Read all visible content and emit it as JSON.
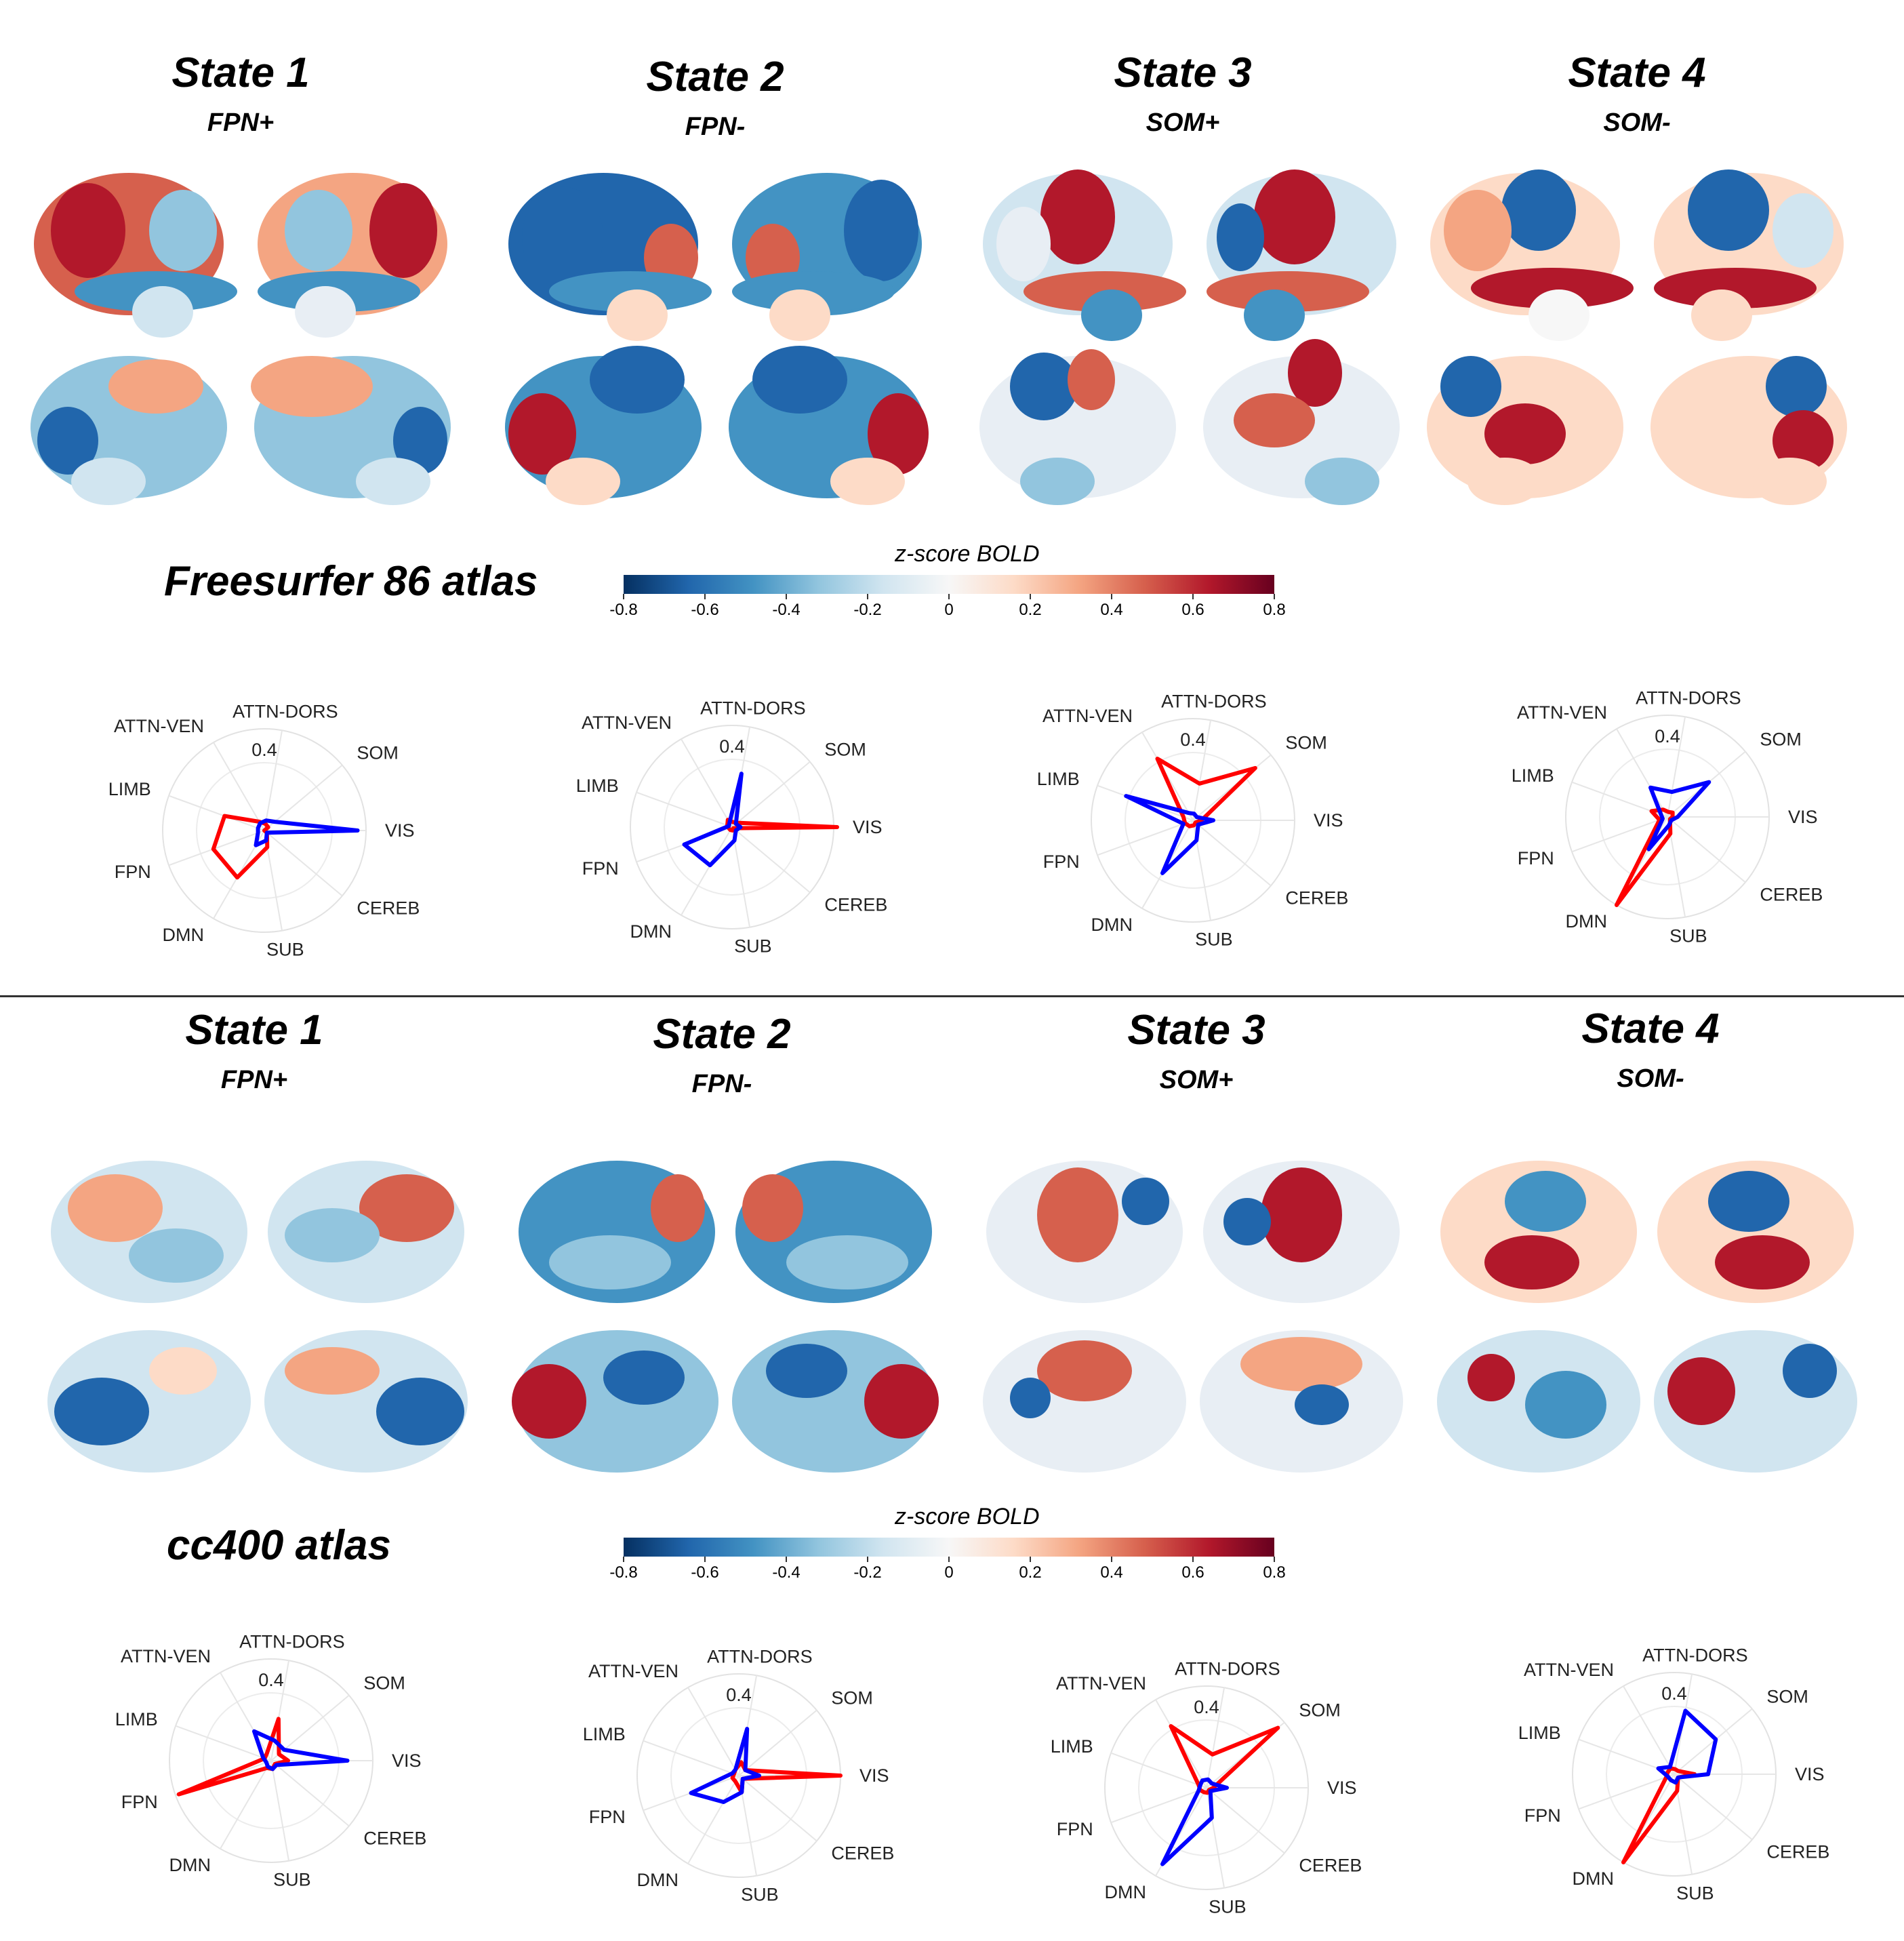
{
  "panels": [
    {
      "title": "State 1",
      "subtitle": "FPN+"
    },
    {
      "title": "State 2",
      "subtitle": "FPN-"
    },
    {
      "title": "State 3",
      "subtitle": "SOM+"
    },
    {
      "title": "State 4",
      "subtitle": "SOM-"
    }
  ],
  "atlases": {
    "top": {
      "label": "Freesurfer 86 atlas"
    },
    "bottom": {
      "label": "cc400 atlas"
    }
  },
  "colorbar": {
    "title": "z-score BOLD",
    "ticks": [
      "-0.8",
      "-0.6",
      "-0.4",
      "-0.2",
      "0",
      "0.2",
      "0.4",
      "0.6",
      "0.8"
    ],
    "range": [
      -0.8,
      0.8
    ],
    "colors": [
      "#053061",
      "#2166ac",
      "#4393c3",
      "#92c5de",
      "#d1e5f0",
      "#f7f7f7",
      "#fddbc7",
      "#f4a582",
      "#d6604d",
      "#b2182b",
      "#67001f"
    ]
  },
  "chart_data": [
    {
      "type": "radar",
      "atlas": "Freesurfer 86 atlas",
      "state": "State 1",
      "axes": [
        "VIS",
        "SOM",
        "ATTN-DORS",
        "ATTN-VEN",
        "LIMB",
        "FPN",
        "DMN",
        "SUB",
        "CEREB"
      ],
      "rmax": 0.6,
      "ring_label": "0.4",
      "series": [
        {
          "color": "#ff0000",
          "values": [
            0.0,
            0.03,
            0.04,
            0.06,
            0.25,
            0.32,
            0.32,
            0.1,
            0.02
          ]
        },
        {
          "color": "#0000ff",
          "values": [
            0.55,
            0.08,
            0.06,
            0.05,
            0.04,
            0.04,
            0.1,
            0.06,
            0.02
          ]
        }
      ]
    },
    {
      "type": "radar",
      "atlas": "Freesurfer 86 atlas",
      "state": "State 2",
      "axes": [
        "VIS",
        "SOM",
        "ATTN-DORS",
        "ATTN-VEN",
        "LIMB",
        "FPN",
        "DMN",
        "SUB",
        "CEREB"
      ],
      "rmax": 0.6,
      "ring_label": "0.4",
      "series": [
        {
          "color": "#ff0000",
          "values": [
            0.62,
            0.04,
            0.03,
            0.05,
            0.03,
            0.02,
            0.02,
            0.02,
            0.01
          ]
        },
        {
          "color": "#0000ff",
          "values": [
            0.05,
            0.03,
            0.32,
            0.03,
            0.02,
            0.3,
            0.26,
            0.08,
            0.03
          ]
        }
      ]
    },
    {
      "type": "radar",
      "atlas": "Freesurfer 86 atlas",
      "state": "State 3",
      "axes": [
        "VIS",
        "SOM",
        "ATTN-DORS",
        "ATTN-VEN",
        "LIMB",
        "FPN",
        "DMN",
        "SUB",
        "CEREB"
      ],
      "rmax": 0.6,
      "ring_label": "0.4",
      "series": [
        {
          "color": "#ff0000",
          "values": [
            0.05,
            0.48,
            0.22,
            0.42,
            0.06,
            0.05,
            0.04,
            0.03,
            0.02
          ]
        },
        {
          "color": "#0000ff",
          "values": [
            0.12,
            0.03,
            0.04,
            0.05,
            0.42,
            0.06,
            0.36,
            0.12,
            0.04
          ]
        }
      ]
    },
    {
      "type": "radar",
      "atlas": "Freesurfer 86 atlas",
      "state": "State 4",
      "axes": [
        "VIS",
        "SOM",
        "ATTN-DORS",
        "ATTN-VEN",
        "LIMB",
        "FPN",
        "DMN",
        "SUB",
        "CEREB"
      ],
      "rmax": 0.6,
      "ring_label": "0.4",
      "series": [
        {
          "color": "#ff0000",
          "values": [
            0.03,
            0.04,
            0.03,
            0.05,
            0.1,
            0.05,
            0.6,
            0.1,
            0.02
          ]
        },
        {
          "color": "#0000ff",
          "values": [
            0.06,
            0.32,
            0.15,
            0.2,
            0.04,
            0.03,
            0.22,
            0.05,
            0.03
          ]
        }
      ]
    },
    {
      "type": "radar",
      "atlas": "cc400 atlas",
      "state": "State 1",
      "axes": [
        "VIS",
        "SOM",
        "ATTN-DORS",
        "ATTN-VEN",
        "LIMB",
        "FPN",
        "DMN",
        "SUB",
        "CEREB"
      ],
      "rmax": 0.6,
      "ring_label": "0.4",
      "series": [
        {
          "color": "#ff0000",
          "values": [
            0.1,
            0.06,
            0.25,
            0.05,
            0.04,
            0.58,
            0.05,
            0.05,
            0.03
          ]
        },
        {
          "color": "#0000ff",
          "values": [
            0.45,
            0.1,
            0.12,
            0.2,
            0.05,
            0.03,
            0.04,
            0.05,
            0.04
          ]
        }
      ]
    },
    {
      "type": "radar",
      "atlas": "cc400 atlas",
      "state": "State 2",
      "axes": [
        "VIS",
        "SOM",
        "ATTN-DORS",
        "ATTN-VEN",
        "LIMB",
        "FPN",
        "DMN",
        "SUB",
        "CEREB"
      ],
      "rmax": 0.6,
      "ring_label": "0.4",
      "series": [
        {
          "color": "#ff0000",
          "values": [
            0.6,
            0.05,
            0.08,
            0.04,
            0.03,
            0.04,
            0.04,
            0.1,
            0.03
          ]
        },
        {
          "color": "#0000ff",
          "values": [
            0.12,
            0.05,
            0.28,
            0.04,
            0.04,
            0.3,
            0.18,
            0.1,
            0.03
          ]
        }
      ]
    },
    {
      "type": "radar",
      "atlas": "cc400 atlas",
      "state": "State 3",
      "axes": [
        "VIS",
        "SOM",
        "ATTN-DORS",
        "ATTN-VEN",
        "LIMB",
        "FPN",
        "DMN",
        "SUB",
        "CEREB"
      ],
      "rmax": 0.6,
      "ring_label": "0.4",
      "series": [
        {
          "color": "#ff0000",
          "values": [
            0.04,
            0.55,
            0.2,
            0.42,
            0.05,
            0.04,
            0.03,
            0.03,
            0.02
          ]
        },
        {
          "color": "#0000ff",
          "values": [
            0.12,
            0.04,
            0.05,
            0.05,
            0.04,
            0.05,
            0.52,
            0.18,
            0.03
          ]
        }
      ]
    },
    {
      "type": "radar",
      "atlas": "cc400 atlas",
      "state": "State 4",
      "axes": [
        "VIS",
        "SOM",
        "ATTN-DORS",
        "ATTN-VEN",
        "LIMB",
        "FPN",
        "DMN",
        "SUB",
        "CEREB"
      ],
      "rmax": 0.6,
      "ring_label": "0.4",
      "series": [
        {
          "color": "#ff0000",
          "values": [
            0.12,
            0.03,
            0.03,
            0.04,
            0.04,
            0.05,
            0.6,
            0.1,
            0.03
          ]
        },
        {
          "color": "#0000ff",
          "values": [
            0.2,
            0.32,
            0.38,
            0.05,
            0.1,
            0.04,
            0.04,
            0.05,
            0.03
          ]
        }
      ]
    }
  ]
}
